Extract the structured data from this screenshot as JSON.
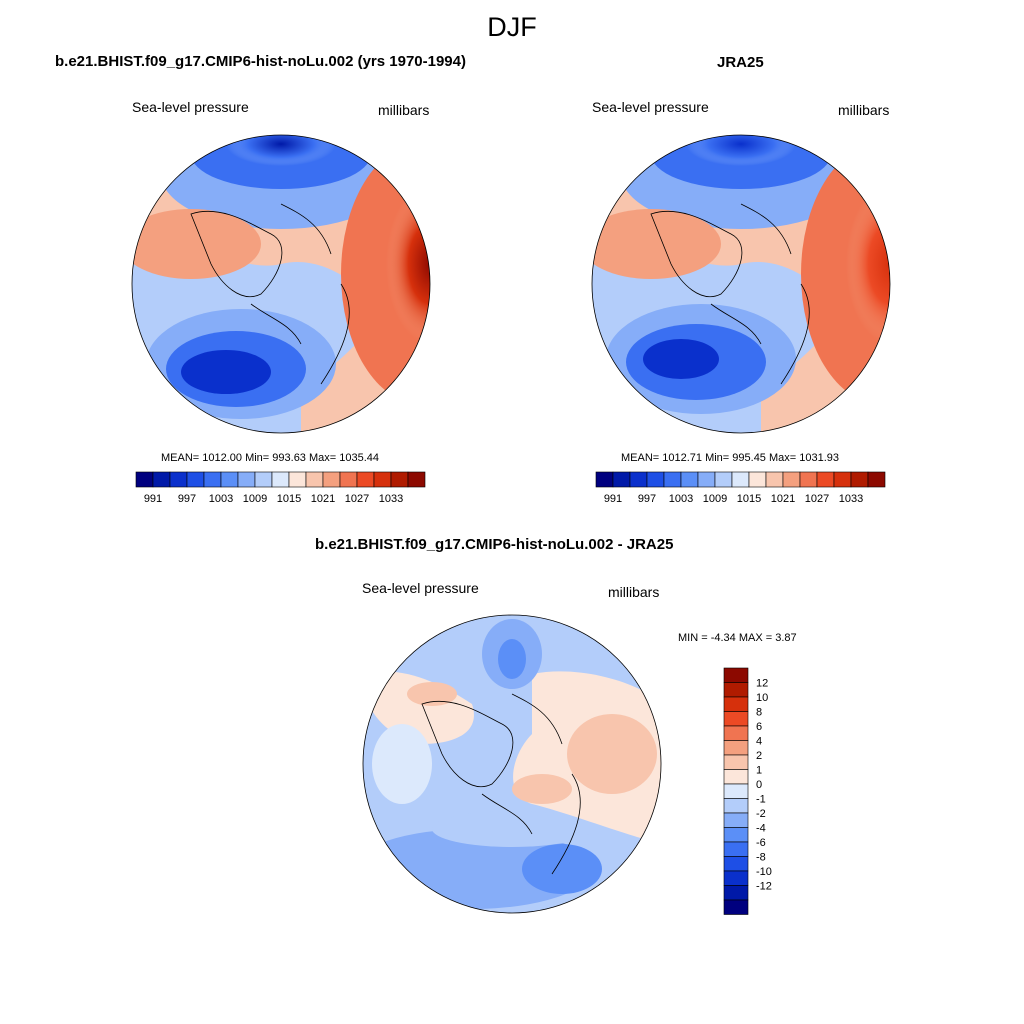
{
  "figure": {
    "title": "DJF"
  },
  "panels": [
    {
      "title": "b.e21.BHIST.f09_g17.CMIP6-hist-noLu.002 (yrs 1970-1994)",
      "variable": "Sea-level pressure",
      "units": "millibars",
      "stats": "MEAN= 1012.00   Min= 993.63   Max= 1035.44"
    },
    {
      "title": "JRA25",
      "variable": "Sea-level pressure",
      "units": "millibars",
      "stats": "MEAN= 1012.71   Min= 995.45   Max= 1031.93"
    },
    {
      "title": "b.e21.BHIST.f09_g17.CMIP6-hist-noLu.002 - JRA25",
      "variable": "Sea-level pressure",
      "units": "millibars",
      "stats": "MIN =  -4.34 MAX =   3.87"
    }
  ],
  "colorbar_slp": {
    "colors": [
      "#00007f",
      "#0019a8",
      "#0a30cc",
      "#1e4fe6",
      "#3a6ff2",
      "#5b8ff7",
      "#86adf8",
      "#b3cdfa",
      "#dce9fc",
      "#fce6da",
      "#f8c5ad",
      "#f4a07f",
      "#f07451",
      "#ec4a25",
      "#d6300c",
      "#b01b00",
      "#8c0900"
    ],
    "tick_labels": [
      "991",
      "997",
      "1003",
      "1009",
      "1015",
      "1021",
      "1027",
      "1033"
    ]
  },
  "colorbar_diff": {
    "colors": [
      "#8c0900",
      "#b01b00",
      "#d6300c",
      "#ec4a25",
      "#f07451",
      "#f4a07f",
      "#f8c5ad",
      "#fce6da",
      "#dce9fc",
      "#b3cdfa",
      "#86adf8",
      "#5b8ff7",
      "#3a6ff2",
      "#1e4fe6",
      "#0a30cc",
      "#0019a8",
      "#00007f"
    ],
    "tick_labels": [
      "12",
      "10",
      "8",
      "6",
      "4",
      "2",
      "1",
      "0",
      "-1",
      "-2",
      "-4",
      "-6",
      "-8",
      "-10",
      "-12"
    ]
  }
}
